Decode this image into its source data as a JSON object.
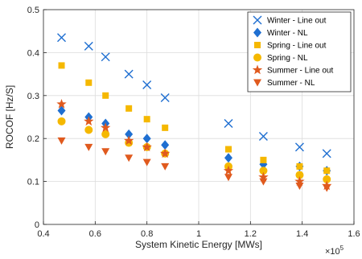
{
  "chart_data": {
    "type": "scatter",
    "xlabel": "System Kinetic Energy [MWs]",
    "ylabel": "ROCOF [Hz/S]",
    "x_multiplier_base": "×10",
    "x_multiplier_exp": "5",
    "xlim": [
      0.4,
      1.6
    ],
    "ylim": [
      0,
      0.5
    ],
    "x_ticks": [
      0.4,
      0.6,
      0.8,
      1.0,
      1.2,
      1.4,
      1.6
    ],
    "x_tick_labels": [
      "0.4",
      "0.6",
      "0.8",
      "1",
      "1.2",
      "1.4",
      "1.6"
    ],
    "y_ticks": [
      0,
      0.1,
      0.2,
      0.3,
      0.4,
      0.5
    ],
    "y_tick_labels": [
      "0",
      "0.1",
      "0.2",
      "0.3",
      "0.4",
      "0.5"
    ],
    "grid": true,
    "legend_position": "top-right",
    "x": [
      0.47,
      0.575,
      0.64,
      0.73,
      0.8,
      0.87,
      1.115,
      1.25,
      1.39,
      1.495
    ],
    "series": [
      {
        "name": "Winter - Line out",
        "marker": "x",
        "color": "#1f6fd1",
        "values": [
          0.435,
          0.415,
          0.39,
          0.35,
          0.325,
          0.295,
          0.235,
          0.205,
          0.18,
          0.165
        ]
      },
      {
        "name": "Winter - NL",
        "marker": "diamond",
        "color": "#1f6fd1",
        "values": [
          0.265,
          0.25,
          0.235,
          0.21,
          0.2,
          0.185,
          0.155,
          0.14,
          0.135,
          0.125
        ]
      },
      {
        "name": "Spring - Line out",
        "marker": "square",
        "color": "#f5b800",
        "values": [
          0.37,
          0.33,
          0.3,
          0.27,
          0.245,
          0.225,
          0.175,
          0.15,
          0.135,
          0.125
        ]
      },
      {
        "name": "Spring - NL",
        "marker": "circle",
        "color": "#f5b800",
        "values": [
          0.24,
          0.22,
          0.21,
          0.19,
          0.18,
          0.165,
          0.135,
          0.125,
          0.115,
          0.105
        ]
      },
      {
        "name": "Summer - Line out",
        "marker": "star",
        "color": "#e05a1e",
        "values": [
          0.28,
          0.24,
          0.225,
          0.195,
          0.18,
          0.165,
          0.125,
          0.11,
          0.1,
          0.09
        ]
      },
      {
        "name": "Summer - NL",
        "marker": "triangle-down",
        "color": "#e05a1e",
        "values": [
          0.195,
          0.18,
          0.17,
          0.155,
          0.145,
          0.135,
          0.11,
          0.1,
          0.09,
          0.085
        ]
      }
    ]
  }
}
